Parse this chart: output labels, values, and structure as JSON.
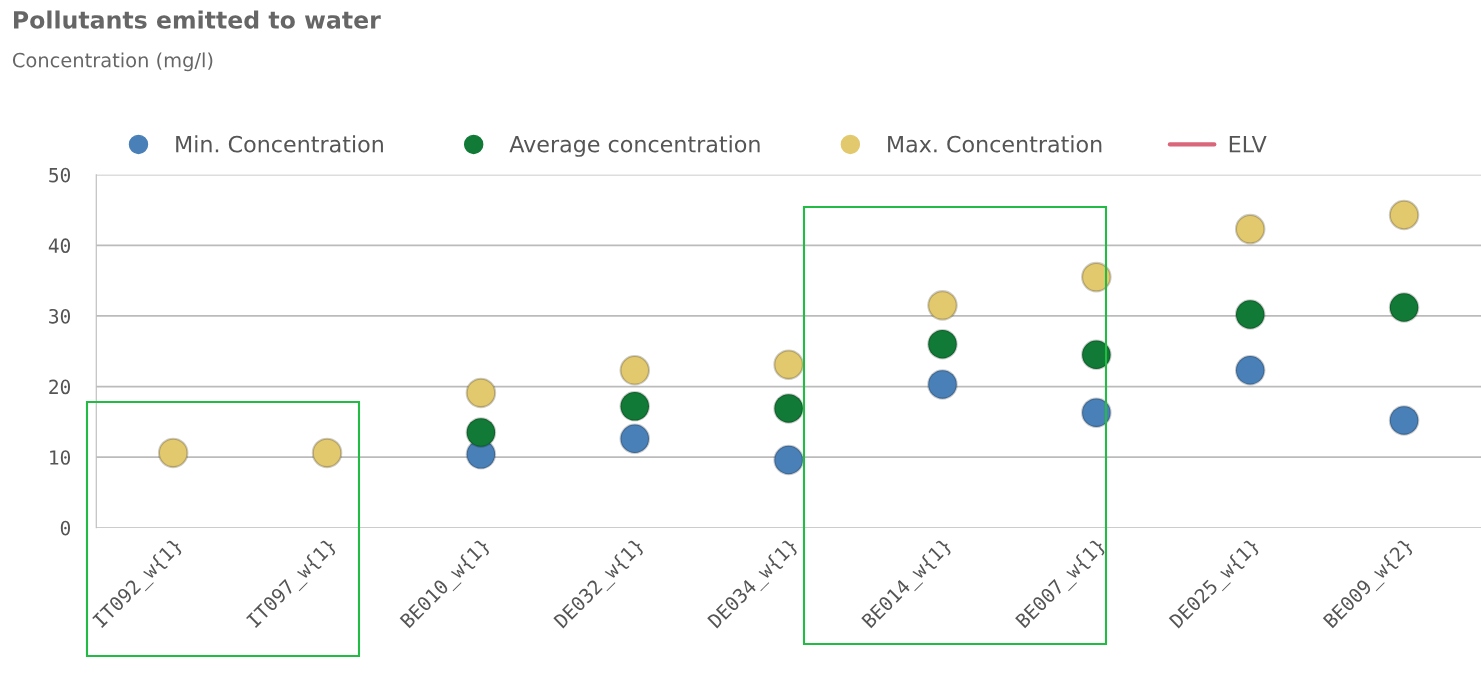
{
  "chart_data": {
    "type": "scatter",
    "title": "Pollutants emitted to water",
    "subtitle": "Concentration (mg/l)",
    "categories": [
      "IT092_w{1}",
      "IT097_w{1}",
      "BE010_w{1}",
      "DE032_w{1}",
      "DE034_w{1}",
      "BE014_w{1}",
      "BE007_w{1}",
      "DE025_w{1}",
      "BE009_w{2}"
    ],
    "series": [
      {
        "name": "Min. Concentration",
        "color": "#4a80b8",
        "values": [
          null,
          null,
          10.4,
          12.6,
          9.6,
          20.3,
          16.3,
          22.3,
          15.2
        ]
      },
      {
        "name": "Average concentration",
        "color": "#117a36",
        "values": [
          null,
          null,
          13.5,
          17.2,
          16.9,
          26.0,
          24.5,
          30.2,
          31.2
        ]
      },
      {
        "name": "Max. Concentration",
        "color": "#e3c96e",
        "values": [
          10.6,
          10.6,
          19.1,
          22.3,
          23.1,
          31.5,
          35.5,
          42.3,
          44.3
        ]
      },
      {
        "name": "ELV",
        "type": "line",
        "color": "#d9667a",
        "values": [
          null,
          null,
          null,
          null,
          null,
          null,
          null,
          null,
          null
        ]
      }
    ],
    "ylim": [
      0,
      50
    ],
    "yticks": [
      0,
      10,
      20,
      30,
      40,
      50
    ],
    "grid": "y",
    "legend": "top left",
    "marker": "circle"
  }
}
